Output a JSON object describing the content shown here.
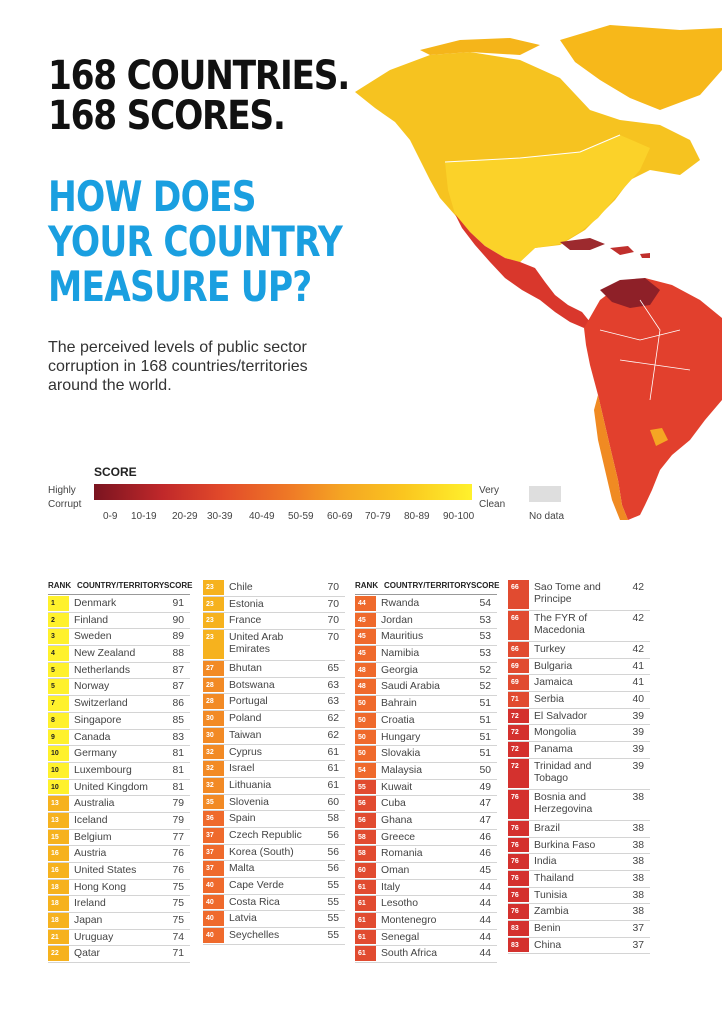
{
  "headline": {
    "line1": "168 COUNTRIES.",
    "line2": "168 SCORES.",
    "line3": "HOW DOES",
    "line4": "YOUR COUNTRY",
    "line5": "MEASURE UP?"
  },
  "subtitle": "The perceived levels of public sector corruption in 168 countries/territories around the world.",
  "legend": {
    "title": "SCORE",
    "left_label_1": "Highly",
    "left_label_2": "Corrupt",
    "right_label_1": "Very",
    "right_label_2": "Clean",
    "ranges": [
      "0-9",
      "10-19",
      "20-29",
      "30-39",
      "40-49",
      "50-59",
      "60-69",
      "70-79",
      "80-89",
      "90-100"
    ],
    "no_data_label": "No data",
    "no_data_color": "#dedede"
  },
  "colors": {
    "accent_blue": "#1a9fe0",
    "rank_top10": "#fff12c",
    "rank_70s": "#f6b21e",
    "rank_60s": "#f28a25",
    "rank_50s": "#ef6a2c",
    "rank_40s": "#e14b30",
    "rank_30s": "#d4312e",
    "map_north": "#f5c018",
    "map_caribbean": "#9d2a2e",
    "map_latin": "#e2402d",
    "map_chile": "#f08a22"
  },
  "table_headers": {
    "rank": "RANK",
    "country": "COUNTRY/TERRITORY",
    "score": "SCORE"
  },
  "rankings": [
    [
      {
        "rank": "1",
        "country": "Denmark",
        "score": "91"
      },
      {
        "rank": "2",
        "country": "Finland",
        "score": "90"
      },
      {
        "rank": "3",
        "country": "Sweden",
        "score": "89"
      },
      {
        "rank": "4",
        "country": "New Zealand",
        "score": "88"
      },
      {
        "rank": "5",
        "country": "Netherlands",
        "score": "87"
      },
      {
        "rank": "5",
        "country": "Norway",
        "score": "87"
      },
      {
        "rank": "7",
        "country": "Switzerland",
        "score": "86"
      },
      {
        "rank": "8",
        "country": "Singapore",
        "score": "85"
      },
      {
        "rank": "9",
        "country": "Canada",
        "score": "83"
      },
      {
        "rank": "10",
        "country": "Germany",
        "score": "81"
      },
      {
        "rank": "10",
        "country": "Luxembourg",
        "score": "81"
      },
      {
        "rank": "10",
        "country": "United Kingdom",
        "score": "81"
      },
      {
        "rank": "13",
        "country": "Australia",
        "score": "79"
      },
      {
        "rank": "13",
        "country": "Iceland",
        "score": "79"
      },
      {
        "rank": "15",
        "country": "Belgium",
        "score": "77"
      },
      {
        "rank": "16",
        "country": "Austria",
        "score": "76"
      },
      {
        "rank": "16",
        "country": "United States",
        "score": "76"
      },
      {
        "rank": "18",
        "country": "Hong Kong",
        "score": "75"
      },
      {
        "rank": "18",
        "country": "Ireland",
        "score": "75"
      },
      {
        "rank": "18",
        "country": "Japan",
        "score": "75"
      },
      {
        "rank": "21",
        "country": "Uruguay",
        "score": "74"
      },
      {
        "rank": "22",
        "country": "Qatar",
        "score": "71"
      }
    ],
    [
      {
        "rank": "23",
        "country": "Chile",
        "score": "70"
      },
      {
        "rank": "23",
        "country": "Estonia",
        "score": "70"
      },
      {
        "rank": "23",
        "country": "France",
        "score": "70"
      },
      {
        "rank": "23",
        "country": "United Arab Emirates",
        "score": "70"
      },
      {
        "rank": "27",
        "country": "Bhutan",
        "score": "65"
      },
      {
        "rank": "28",
        "country": "Botswana",
        "score": "63"
      },
      {
        "rank": "28",
        "country": "Portugal",
        "score": "63"
      },
      {
        "rank": "30",
        "country": "Poland",
        "score": "62"
      },
      {
        "rank": "30",
        "country": "Taiwan",
        "score": "62"
      },
      {
        "rank": "32",
        "country": "Cyprus",
        "score": "61"
      },
      {
        "rank": "32",
        "country": "Israel",
        "score": "61"
      },
      {
        "rank": "32",
        "country": "Lithuania",
        "score": "61"
      },
      {
        "rank": "35",
        "country": "Slovenia",
        "score": "60"
      },
      {
        "rank": "36",
        "country": "Spain",
        "score": "58"
      },
      {
        "rank": "37",
        "country": "Czech Republic",
        "score": "56"
      },
      {
        "rank": "37",
        "country": "Korea (South)",
        "score": "56"
      },
      {
        "rank": "37",
        "country": "Malta",
        "score": "56"
      },
      {
        "rank": "40",
        "country": "Cape Verde",
        "score": "55"
      },
      {
        "rank": "40",
        "country": "Costa Rica",
        "score": "55"
      },
      {
        "rank": "40",
        "country": "Latvia",
        "score": "55"
      },
      {
        "rank": "40",
        "country": "Seychelles",
        "score": "55"
      }
    ],
    [
      {
        "rank": "44",
        "country": "Rwanda",
        "score": "54"
      },
      {
        "rank": "45",
        "country": "Jordan",
        "score": "53"
      },
      {
        "rank": "45",
        "country": "Mauritius",
        "score": "53"
      },
      {
        "rank": "45",
        "country": "Namibia",
        "score": "53"
      },
      {
        "rank": "48",
        "country": "Georgia",
        "score": "52"
      },
      {
        "rank": "48",
        "country": "Saudi Arabia",
        "score": "52"
      },
      {
        "rank": "50",
        "country": "Bahrain",
        "score": "51"
      },
      {
        "rank": "50",
        "country": "Croatia",
        "score": "51"
      },
      {
        "rank": "50",
        "country": "Hungary",
        "score": "51"
      },
      {
        "rank": "50",
        "country": "Slovakia",
        "score": "51"
      },
      {
        "rank": "54",
        "country": "Malaysia",
        "score": "50"
      },
      {
        "rank": "55",
        "country": "Kuwait",
        "score": "49"
      },
      {
        "rank": "56",
        "country": "Cuba",
        "score": "47"
      },
      {
        "rank": "56",
        "country": "Ghana",
        "score": "47"
      },
      {
        "rank": "58",
        "country": "Greece",
        "score": "46"
      },
      {
        "rank": "58",
        "country": "Romania",
        "score": "46"
      },
      {
        "rank": "60",
        "country": "Oman",
        "score": "45"
      },
      {
        "rank": "61",
        "country": "Italy",
        "score": "44"
      },
      {
        "rank": "61",
        "country": "Lesotho",
        "score": "44"
      },
      {
        "rank": "61",
        "country": "Montenegro",
        "score": "44"
      },
      {
        "rank": "61",
        "country": "Senegal",
        "score": "44"
      },
      {
        "rank": "61",
        "country": "South Africa",
        "score": "44"
      }
    ],
    [
      {
        "rank": "66",
        "country": "Sao Tome and Principe",
        "score": "42"
      },
      {
        "rank": "66",
        "country": "The FYR of Macedonia",
        "score": "42"
      },
      {
        "rank": "66",
        "country": "Turkey",
        "score": "42"
      },
      {
        "rank": "69",
        "country": "Bulgaria",
        "score": "41"
      },
      {
        "rank": "69",
        "country": "Jamaica",
        "score": "41"
      },
      {
        "rank": "71",
        "country": "Serbia",
        "score": "40"
      },
      {
        "rank": "72",
        "country": "El Salvador",
        "score": "39"
      },
      {
        "rank": "72",
        "country": "Mongolia",
        "score": "39"
      },
      {
        "rank": "72",
        "country": "Panama",
        "score": "39"
      },
      {
        "rank": "72",
        "country": "Trinidad and Tobago",
        "score": "39"
      },
      {
        "rank": "76",
        "country": "Bosnia and Herzegovina",
        "score": "38"
      },
      {
        "rank": "76",
        "country": "Brazil",
        "score": "38"
      },
      {
        "rank": "76",
        "country": "Burkina Faso",
        "score": "38"
      },
      {
        "rank": "76",
        "country": "India",
        "score": "38"
      },
      {
        "rank": "76",
        "country": "Thailand",
        "score": "38"
      },
      {
        "rank": "76",
        "country": "Tunisia",
        "score": "38"
      },
      {
        "rank": "76",
        "country": "Zambia",
        "score": "38"
      },
      {
        "rank": "83",
        "country": "Benin",
        "score": "37"
      },
      {
        "rank": "83",
        "country": "China",
        "score": "37"
      }
    ]
  ]
}
